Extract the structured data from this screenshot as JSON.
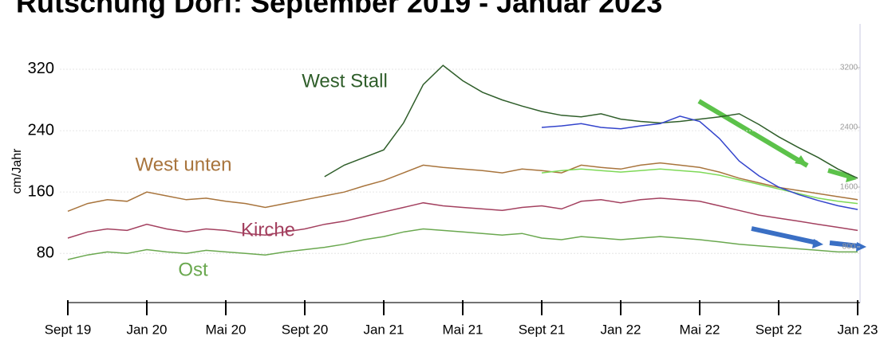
{
  "chart_data": {
    "type": "line",
    "title": "Rutschung Dorf: September 2019 - Januar 2023",
    "y_label": "cm/Jahr",
    "categories": [
      "Sept 19",
      null,
      null,
      null,
      "Jan 20",
      null,
      null,
      null,
      "Mai 20",
      null,
      null,
      null,
      "Sept 20",
      null,
      null,
      null,
      "Jan 21",
      null,
      null,
      null,
      "Mai 21",
      null,
      null,
      null,
      "Sept 21",
      null,
      null,
      null,
      "Jan 22",
      null,
      null,
      null,
      "Mai 22",
      null,
      null,
      null,
      "Sept 22",
      null,
      null,
      null,
      "Jan 23"
    ],
    "ylim": [
      16,
      377
    ],
    "yticks": [
      80,
      160,
      240,
      320
    ],
    "y2lim": [
      53,
      3765
    ],
    "y2ticks": [
      800,
      1600,
      2400,
      3200
    ],
    "grid": true,
    "series": [
      {
        "name": "Ost",
        "color": "#6aa84f",
        "values": [
          72,
          78,
          82,
          80,
          85,
          82,
          80,
          84,
          82,
          80,
          78,
          82,
          85,
          88,
          92,
          98,
          102,
          108,
          112,
          110,
          108,
          106,
          104,
          106,
          100,
          98,
          102,
          100,
          98,
          100,
          102,
          100,
          98,
          95,
          92,
          90,
          88,
          86,
          84,
          82,
          82
        ]
      },
      {
        "name": "Kirche",
        "color": "#a3405f",
        "values": [
          100,
          108,
          112,
          110,
          118,
          112,
          108,
          112,
          110,
          106,
          104,
          108,
          112,
          118,
          122,
          128,
          134,
          140,
          146,
          142,
          140,
          138,
          136,
          140,
          142,
          138,
          148,
          150,
          146,
          150,
          152,
          150,
          148,
          142,
          136,
          130,
          126,
          122,
          118,
          114,
          110
        ]
      },
      {
        "name": "West unten",
        "color": "#a8743c",
        "values": [
          135,
          145,
          150,
          148,
          160,
          155,
          150,
          152,
          148,
          145,
          140,
          145,
          150,
          155,
          160,
          168,
          175,
          185,
          195,
          192,
          190,
          188,
          185,
          190,
          188,
          185,
          195,
          192,
          190,
          195,
          198,
          195,
          192,
          186,
          178,
          172,
          166,
          162,
          158,
          154,
          150
        ]
      },
      {
        "name": "West Stall",
        "color": "#2f5e2a",
        "values": [
          null,
          null,
          null,
          null,
          null,
          null,
          null,
          null,
          null,
          null,
          null,
          null,
          null,
          180,
          195,
          205,
          215,
          250,
          300,
          325,
          305,
          290,
          280,
          272,
          265,
          260,
          258,
          262,
          255,
          252,
          250,
          252,
          255,
          258,
          262,
          248,
          232,
          218,
          205,
          190,
          178
        ]
      },
      {
        "color": "#7ed957",
        "values": [
          null,
          null,
          null,
          null,
          null,
          null,
          null,
          null,
          null,
          null,
          null,
          null,
          null,
          null,
          null,
          null,
          null,
          null,
          null,
          null,
          null,
          null,
          null,
          null,
          185,
          188,
          190,
          188,
          186,
          188,
          190,
          188,
          186,
          182,
          176,
          170,
          164,
          158,
          152,
          148,
          145
        ]
      },
      {
        "color": "#3344cc",
        "axis": "y2",
        "values": [
          null,
          null,
          null,
          null,
          null,
          null,
          null,
          null,
          null,
          null,
          null,
          null,
          null,
          null,
          null,
          null,
          null,
          null,
          null,
          null,
          null,
          null,
          null,
          null,
          2400,
          2420,
          2450,
          2400,
          2380,
          2420,
          2450,
          2550,
          2480,
          2250,
          1950,
          1750,
          1600,
          1500,
          1420,
          1350,
          1300
        ]
      }
    ]
  }
}
